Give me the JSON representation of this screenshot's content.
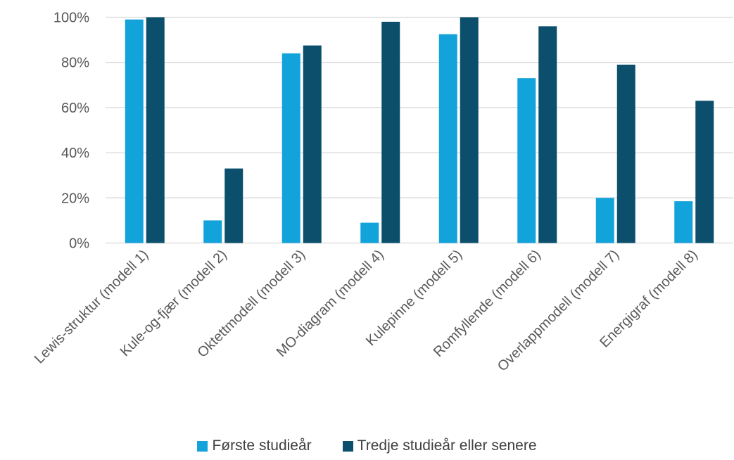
{
  "chart_data": {
    "type": "bar",
    "categories": [
      "Lewis-struktur (modell 1)",
      "Kule-og-fjær (modell 2)",
      "Oktettmodell (modell 3)",
      "MO-diagram (modell 4)",
      "Kulepinne (modell 5)",
      "Romfyllende (modell 6)",
      "Overlappmodell (modell 7)",
      "Energigraf (modell 8)"
    ],
    "series": [
      {
        "name": "Første studieår",
        "color": "#12A3DB",
        "values": [
          99,
          10,
          84,
          9,
          92.5,
          73,
          20,
          18.5
        ]
      },
      {
        "name": "Tredje studieår eller senere",
        "color": "#0B4F6C",
        "values": [
          100,
          33,
          87.5,
          98,
          100,
          96,
          79,
          63
        ]
      }
    ],
    "title": "",
    "xlabel": "",
    "ylabel": "",
    "ylim": [
      0,
      100
    ],
    "yticks": [
      "0%",
      "20%",
      "40%",
      "60%",
      "80%",
      "100%"
    ],
    "ytick_values": [
      0,
      20,
      40,
      60,
      80,
      100
    ],
    "grid": true,
    "legend_position": "bottom"
  }
}
